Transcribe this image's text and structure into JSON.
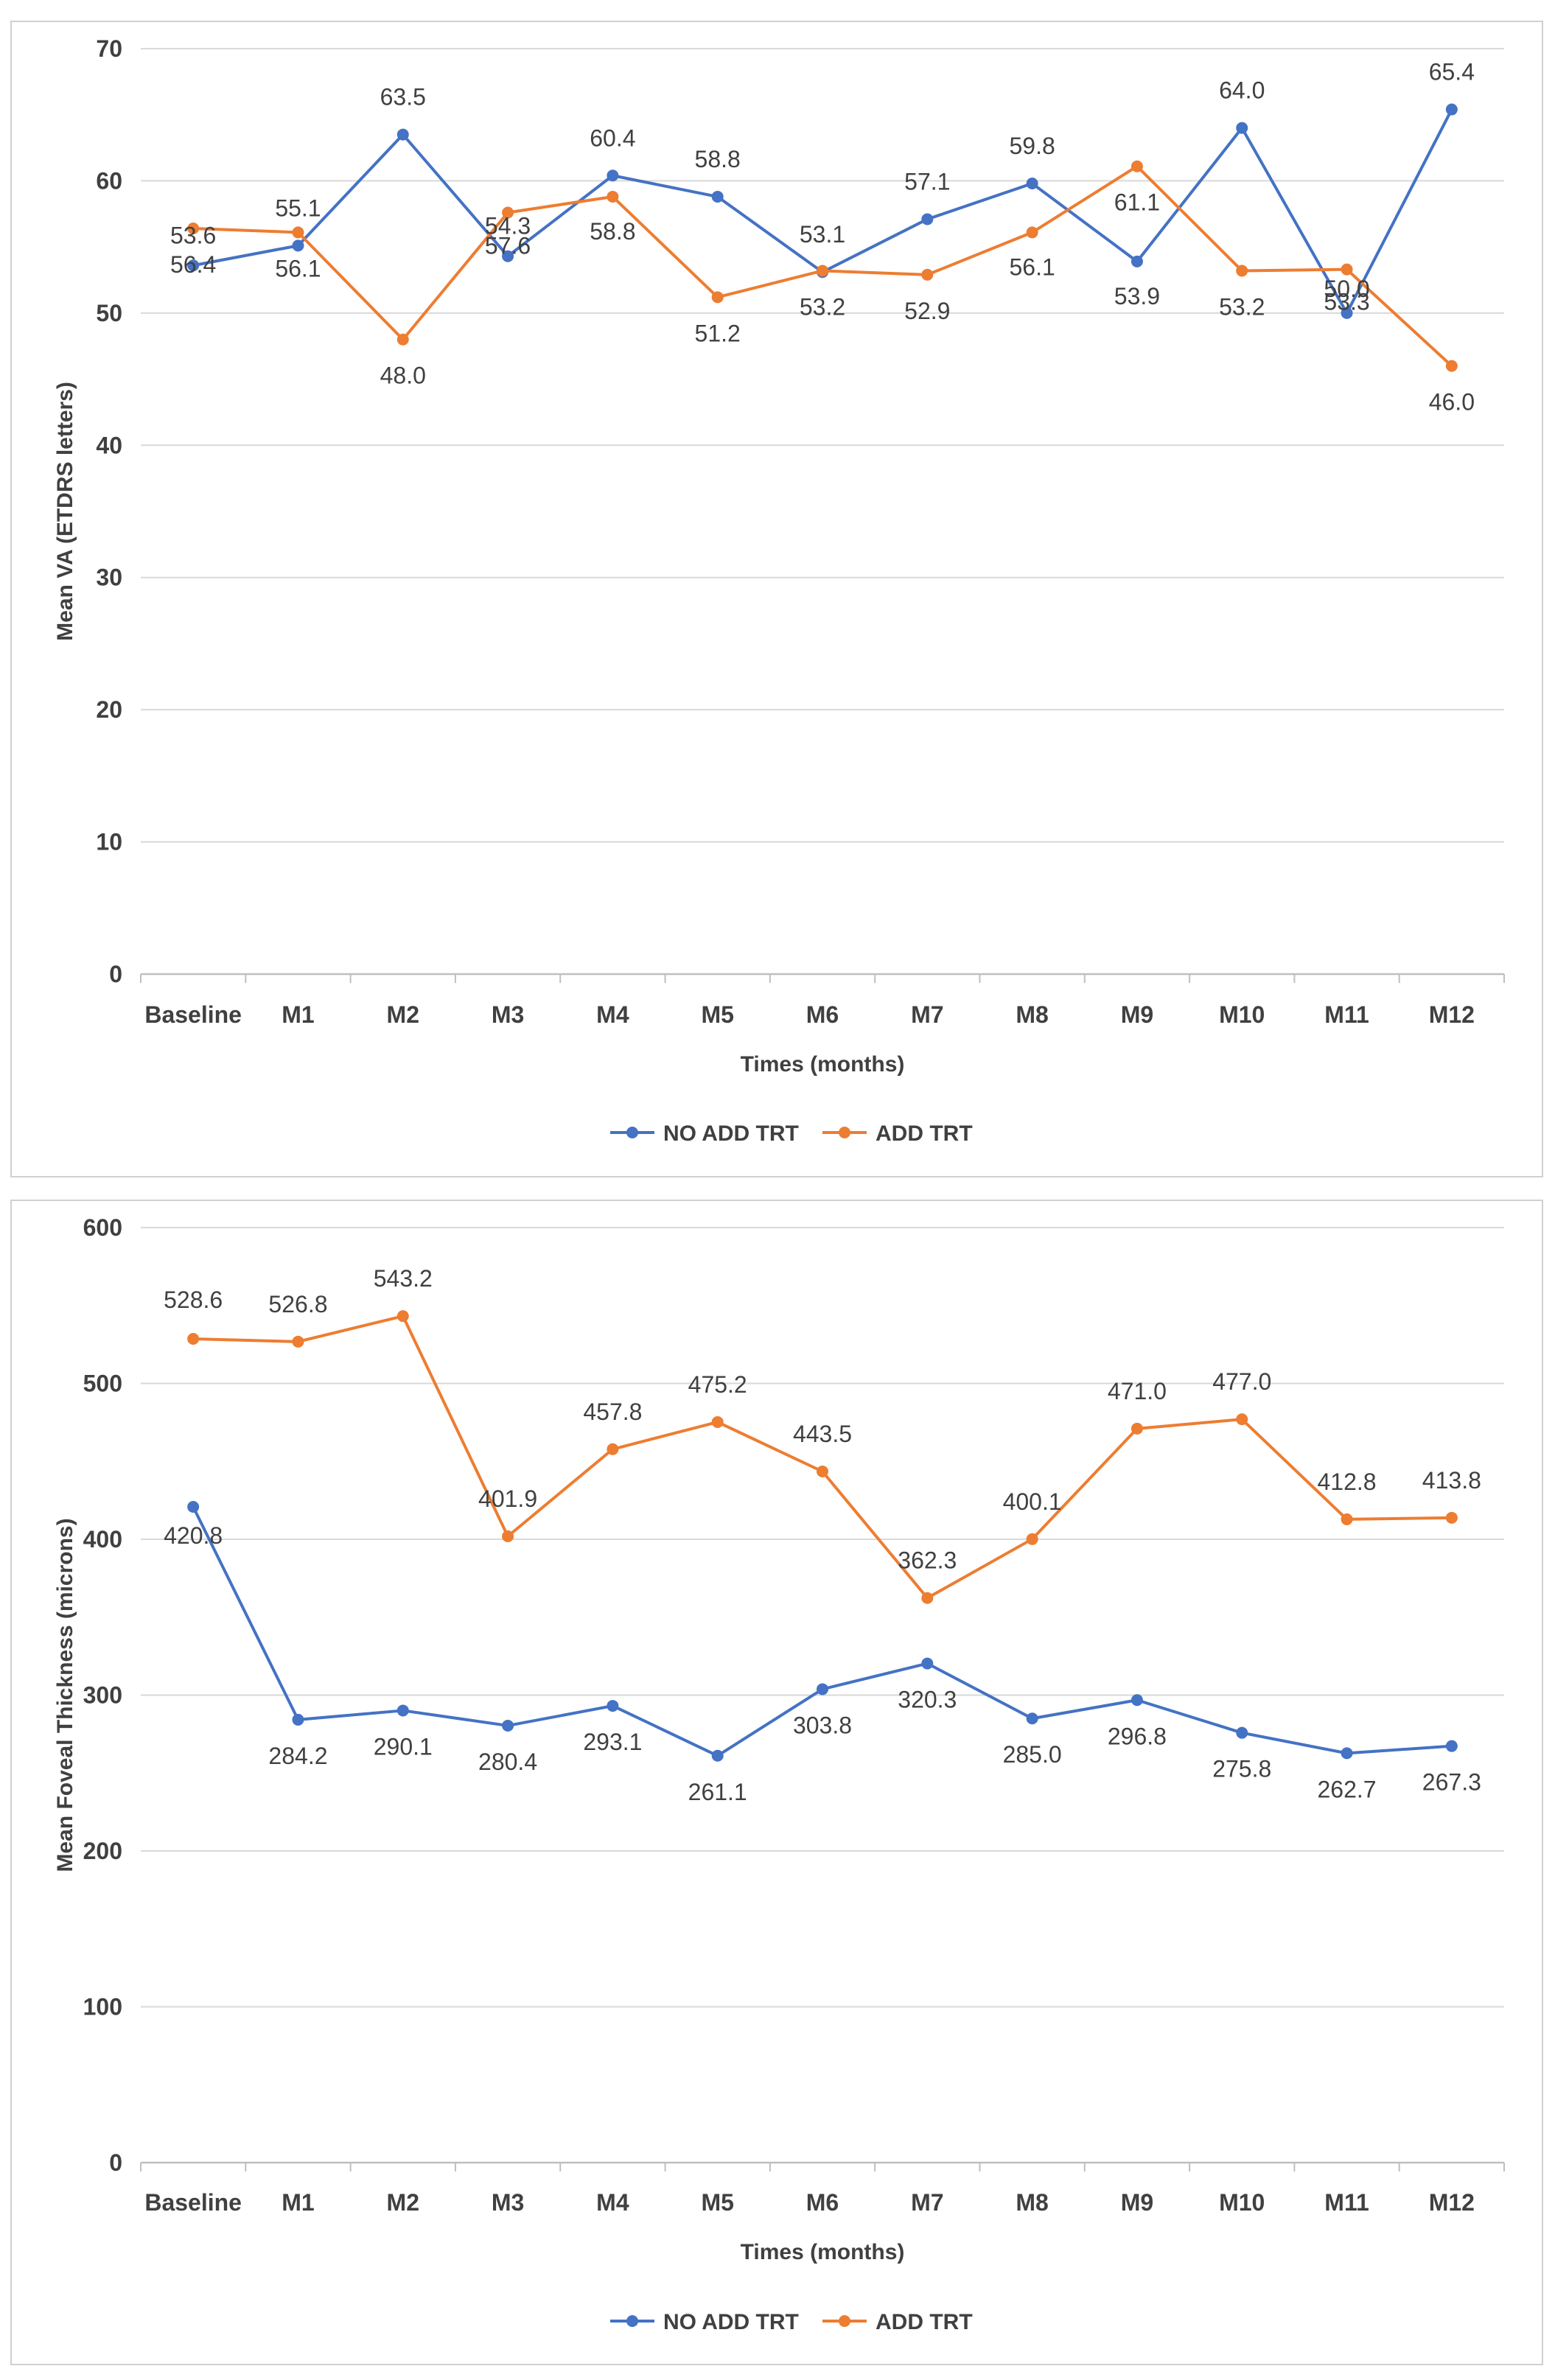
{
  "chart_data": [
    {
      "type": "line",
      "title": "",
      "xlabel": "Times (months)",
      "ylabel": "Mean VA (ETDRS letters)",
      "ylim": [
        0,
        70
      ],
      "yticks": [
        "0",
        "10",
        "20",
        "30",
        "40",
        "50",
        "60",
        "70"
      ],
      "categories": [
        "Baseline",
        "M1",
        "M2",
        "M3",
        "M4",
        "M5",
        "M6",
        "M7",
        "M8",
        "M9",
        "M10",
        "M11",
        "M12"
      ],
      "grid": "horizontal",
      "legend": "bottom",
      "series": [
        {
          "name": "NO ADD TRT",
          "color": "#4472C4",
          "values": [
            53.6,
            55.1,
            63.5,
            54.3,
            60.4,
            58.8,
            53.1,
            57.1,
            59.8,
            53.9,
            64.0,
            50.0,
            65.4
          ],
          "labels": [
            "53.6",
            "55.1",
            "63.5",
            "54.3",
            "60.4",
            "58.8",
            "53.1",
            "57.1",
            "59.8",
            "53.9",
            "64.0",
            "50.0",
            "65.4"
          ]
        },
        {
          "name": "ADD TRT",
          "color": "#ED7D31",
          "values": [
            56.4,
            56.1,
            48.0,
            57.6,
            58.8,
            51.2,
            53.2,
            52.9,
            56.1,
            61.1,
            53.2,
            53.3,
            46.0
          ],
          "labels": [
            "56.4",
            "56.1",
            "48.0",
            "57.6",
            "58.8",
            "51.2",
            "53.2",
            "52.9",
            "56.1",
            "61.1",
            "53.2",
            "53.3",
            "46.0"
          ]
        }
      ]
    },
    {
      "type": "line",
      "title": "",
      "xlabel": "Times (months)",
      "ylabel": "Mean Foveal Thickness (microns)",
      "ylim": [
        0,
        600
      ],
      "yticks": [
        "0",
        "100",
        "200",
        "300",
        "400",
        "500",
        "600"
      ],
      "categories": [
        "Baseline",
        "M1",
        "M2",
        "M3",
        "M4",
        "M5",
        "M6",
        "M7",
        "M8",
        "M9",
        "M10",
        "M11",
        "M12"
      ],
      "grid": "horizontal",
      "legend": "bottom",
      "series": [
        {
          "name": "NO ADD TRT",
          "color": "#4472C4",
          "values": [
            420.8,
            284.2,
            290.1,
            280.4,
            293.1,
            261.1,
            303.8,
            320.3,
            285.0,
            296.8,
            275.8,
            262.7,
            267.3
          ],
          "labels": [
            "420.8",
            "284.2",
            "290.1",
            "280.4",
            "293.1",
            "261.1",
            "303.8",
            "320.3",
            "285.0",
            "296.8",
            "275.8",
            "262.7",
            "267.3"
          ]
        },
        {
          "name": "ADD TRT",
          "color": "#ED7D31",
          "values": [
            528.6,
            526.8,
            543.2,
            401.9,
            457.8,
            475.2,
            443.5,
            362.3,
            400.1,
            471.0,
            477.0,
            412.8,
            413.8
          ],
          "labels": [
            "528.6",
            "526.8",
            "543.2",
            "401.9",
            "457.8",
            "475.2",
            "443.5",
            "362.3",
            "400.1",
            "471.0",
            "477.0",
            "412.8",
            "413.8"
          ]
        }
      ]
    }
  ]
}
